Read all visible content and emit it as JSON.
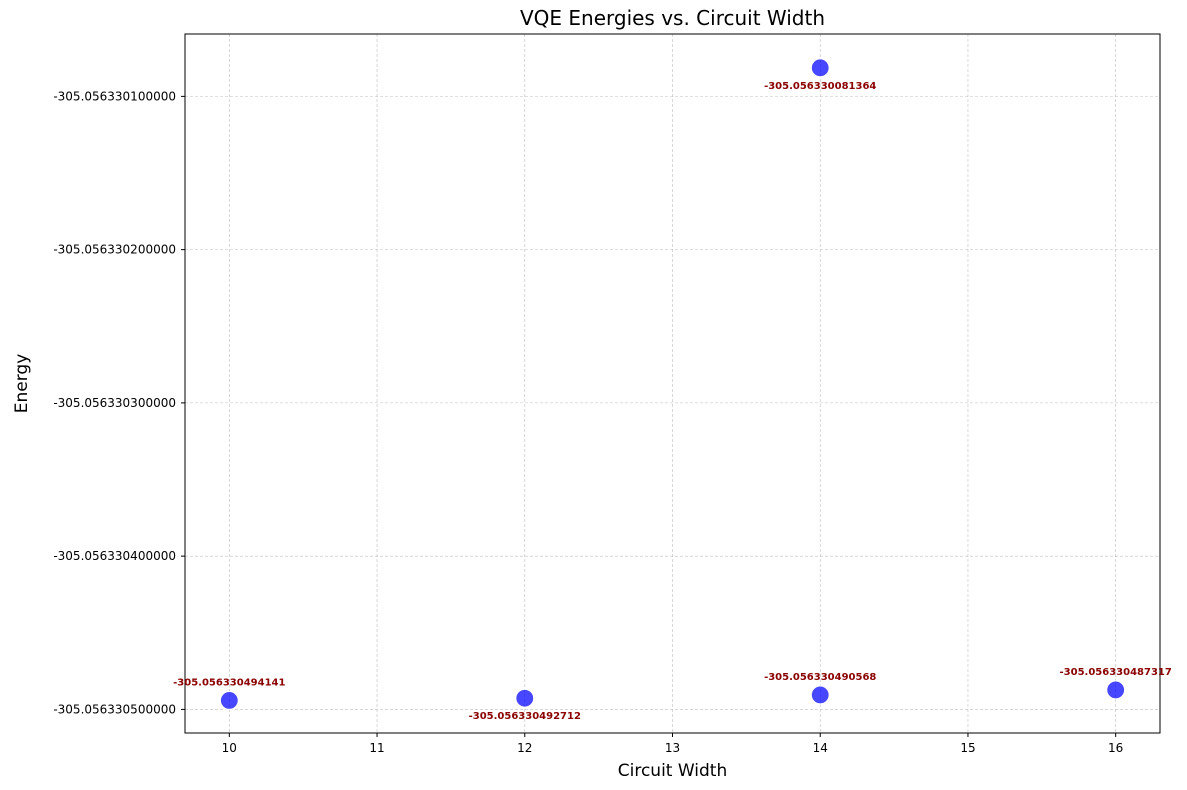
{
  "chart_data": {
    "type": "scatter",
    "title": "VQE Energies vs. Circuit Width",
    "xlabel": "Circuit Width",
    "ylabel": "Energy",
    "xlim": [
      9.7,
      16.3
    ],
    "ylim": [
      -305.0563305154,
      -305.0563300593
    ],
    "x_ticks": [
      10,
      11,
      12,
      13,
      14,
      15,
      16
    ],
    "y_ticks": [
      -305.0563305,
      -305.0563304,
      -305.0563303,
      -305.0563302,
      -305.0563301
    ],
    "y_tick_labels": [
      "-305.056330500000",
      "-305.056330400000",
      "-305.056330300000",
      "-305.056330200000",
      "-305.056330100000"
    ],
    "grid": true,
    "point_color": "#0000ff",
    "label_color": "#8b0000",
    "points": [
      {
        "x": 10,
        "y": -305.056330494141,
        "label": "-305.056330494141",
        "label_pos": "above"
      },
      {
        "x": 12,
        "y": -305.056330492712,
        "label": "-305.056330492712",
        "label_pos": "below"
      },
      {
        "x": 14,
        "y": -305.056330081364,
        "label": "-305.056330081364",
        "label_pos": "below"
      },
      {
        "x": 14,
        "y": -305.056330490568,
        "label": "-305.056330490568",
        "label_pos": "above"
      },
      {
        "x": 16,
        "y": -305.056330487317,
        "label": "-305.056330487317",
        "label_pos": "above"
      }
    ]
  }
}
